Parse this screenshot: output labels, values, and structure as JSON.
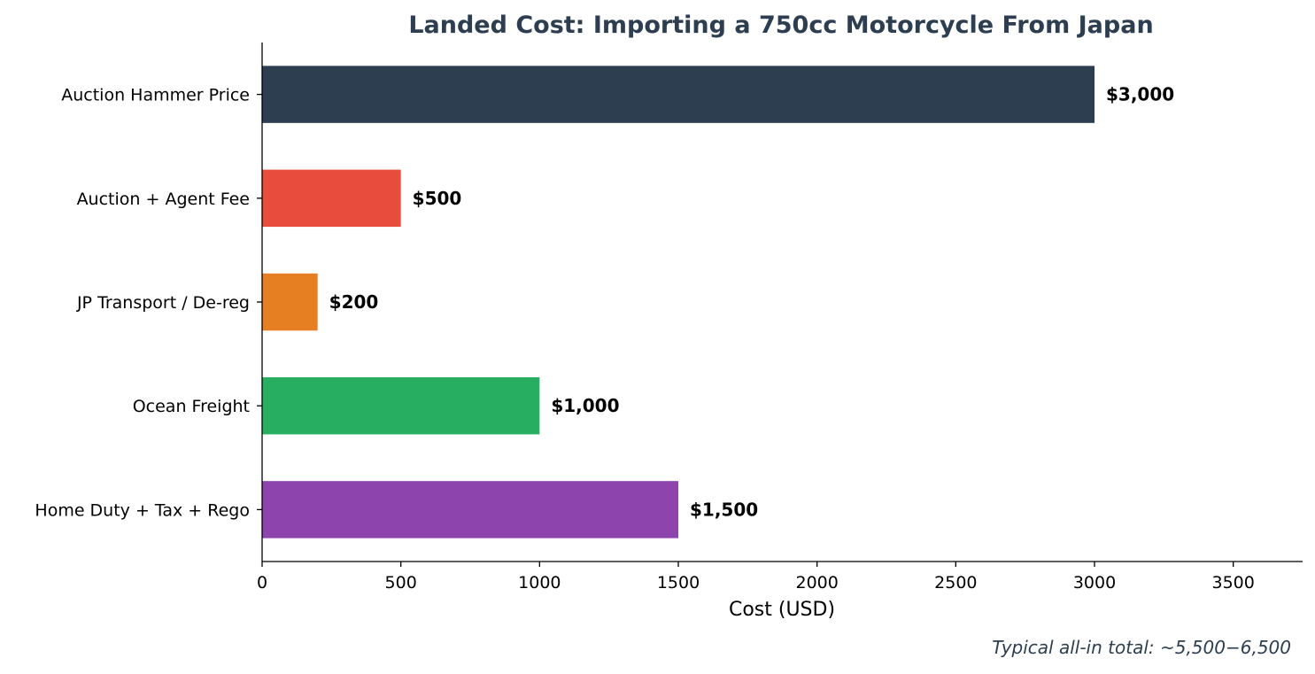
{
  "chart_data": {
    "type": "bar",
    "orientation": "horizontal",
    "title": "Landed Cost: Importing a 750cc Motorcycle From Japan",
    "xlabel": "Cost (USD)",
    "ylabel": "",
    "xlim": [
      0,
      3750
    ],
    "x_ticks": [
      0,
      500,
      1000,
      1500,
      2000,
      2500,
      3000,
      3500
    ],
    "grid": false,
    "categories": [
      "Auction Hammer Price",
      "Auction + Agent Fee",
      "JP Transport / De-reg",
      "Ocean Freight",
      "Home Duty + Tax + Rego"
    ],
    "values": [
      3000,
      500,
      200,
      1000,
      1500
    ],
    "value_labels": [
      "$3,000",
      "$500",
      "$200",
      "$1,000",
      "$1,500"
    ],
    "colors": [
      "#2c3e50",
      "#e74c3c",
      "#e67e22",
      "#27ae60",
      "#8e44ad"
    ],
    "annotation": "Typical all-in total: ~5,500−6,500"
  }
}
